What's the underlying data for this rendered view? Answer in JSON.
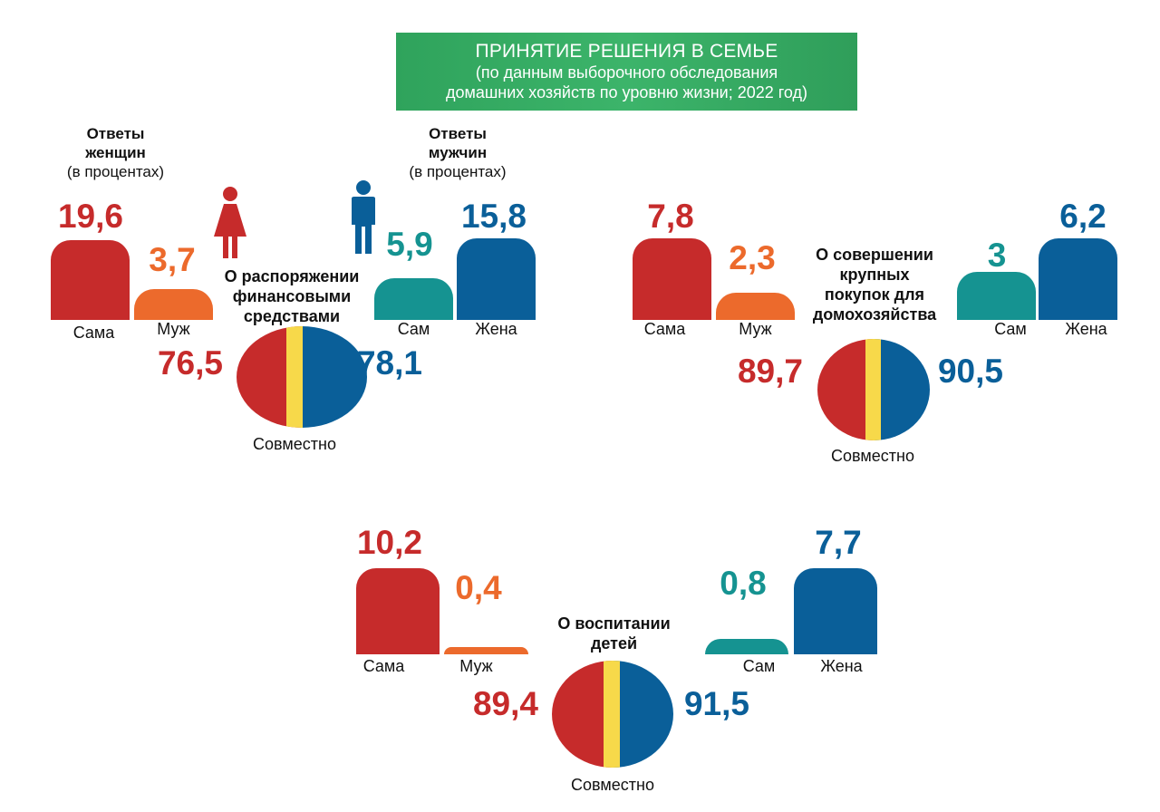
{
  "header": {
    "title": "ПРИНЯТИЕ РЕШЕНИЯ В СЕМЬЕ",
    "subtitle_line1": "(по данным выборочного обследования",
    "subtitle_line2": "домашних хозяйств по уровню жизни; 2022 год)"
  },
  "groups": {
    "women_title_1": "Ответы",
    "women_title_2": "женщин",
    "women_unit": "(в процентах)",
    "men_title_1": "Ответы",
    "men_title_2": "мужчин",
    "men_unit": "(в процентах)"
  },
  "colors": {
    "women_self": "#c62b2b",
    "women_husband": "#ec6a2c",
    "men_self": "#159391",
    "men_wife": "#0a5f99",
    "joint_stripe": "#f7d94a",
    "banner": "#3cb46a"
  },
  "icons": [
    "woman-icon",
    "man-icon"
  ],
  "chart_data": [
    {
      "type": "bar",
      "topic": "О распоряжении финансовыми средствами",
      "topic_lines": [
        "О распоряжении",
        "финансовыми",
        "средствами"
      ],
      "women": {
        "categories": [
          "Сама",
          "Муж"
        ],
        "values": [
          19.6,
          3.7
        ],
        "value_labels": [
          "19,6",
          "3,7"
        ],
        "joint_label": "Совместно",
        "joint": 76.5,
        "joint_text": "76,5"
      },
      "men": {
        "categories": [
          "Сам",
          "Жена"
        ],
        "values": [
          5.9,
          15.8
        ],
        "value_labels": [
          "5,9",
          "15,8"
        ],
        "joint_label": "Совместно",
        "joint": 78.1,
        "joint_text": "78,1"
      }
    },
    {
      "type": "bar",
      "topic": "О совершении крупных покупок для домохозяйства",
      "topic_lines": [
        "О совершении",
        "крупных",
        "покупок для",
        "домохозяйства"
      ],
      "women": {
        "categories": [
          "Сама",
          "Муж"
        ],
        "values": [
          7.8,
          2.3
        ],
        "value_labels": [
          "7,8",
          "2,3"
        ],
        "joint_label": "Совместно",
        "joint": 89.7,
        "joint_text": "89,7"
      },
      "men": {
        "categories": [
          "Сам",
          "Жена"
        ],
        "values": [
          3,
          6.2
        ],
        "value_labels": [
          "3",
          "6,2"
        ],
        "joint_label": "Совместно",
        "joint": 90.5,
        "joint_text": "90,5"
      }
    },
    {
      "type": "bar",
      "topic": "О воспитании детей",
      "topic_lines": [
        "О воспитании",
        "детей"
      ],
      "women": {
        "categories": [
          "Сама",
          "Муж"
        ],
        "values": [
          10.2,
          0.4
        ],
        "value_labels": [
          "10,2",
          "0,4"
        ],
        "joint_label": "Совместно",
        "joint": 89.4,
        "joint_text": "89,4"
      },
      "men": {
        "categories": [
          "Сам",
          "Жена"
        ],
        "values": [
          0.8,
          7.7
        ],
        "value_labels": [
          "0,8",
          "7,7"
        ],
        "joint_label": "Совместно",
        "joint": 91.5,
        "joint_text": "91,5"
      }
    }
  ]
}
